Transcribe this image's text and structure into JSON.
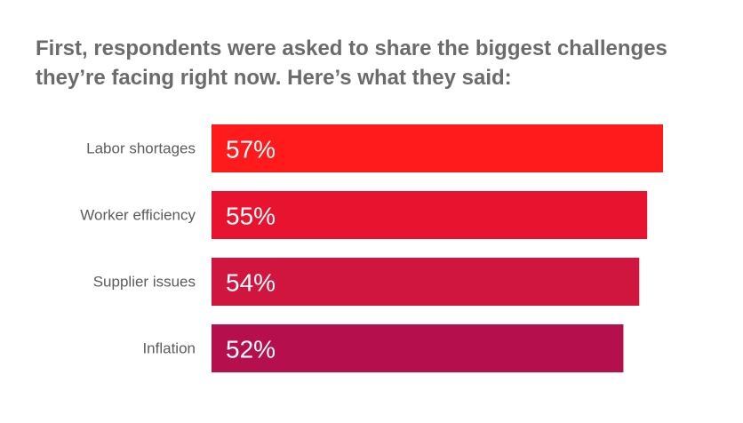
{
  "chart_data": {
    "type": "bar",
    "orientation": "horizontal",
    "title": "First, respondents were asked to share the biggest challenges they’re facing right now. Here’s what they said:",
    "categories": [
      "Labor shortages",
      "Worker efficiency",
      "Supplier issues",
      "Inflation"
    ],
    "values": [
      57,
      55,
      54,
      52
    ],
    "value_labels": [
      "57%",
      "55%",
      "54%",
      "52%"
    ],
    "unit": "%",
    "xlim": [
      0,
      57
    ],
    "colors": [
      "#ff1b1b",
      "#e8142f",
      "#d0163f",
      "#b5104d"
    ],
    "grid": false,
    "legend": "none"
  }
}
